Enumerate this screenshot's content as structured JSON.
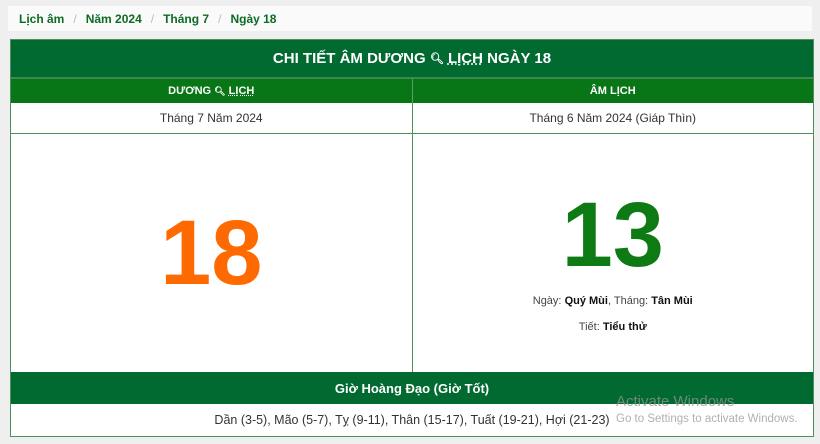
{
  "breadcrumb": [
    "Lịch âm",
    "Năm 2024",
    "Tháng 7",
    "Ngày 18"
  ],
  "title": {
    "pre": "CHI TIẾT ÂM DƯƠNG",
    "icon": "search-icon",
    "link": "LỊCH",
    "post": "NGÀY 18"
  },
  "solar": {
    "header_pre": "DƯƠNG",
    "header_link": "LỊCH",
    "month": "Tháng 7 Năm 2024",
    "day": "18"
  },
  "lunar": {
    "header": "ÂM LỊCH",
    "month": "Tháng 6 Năm 2024 (Giáp Thìn)",
    "day": "13",
    "ngay_label": "Ngày:",
    "ngay_value": "Quý Mùi",
    "thang_label": ", Tháng:",
    "thang_value": "Tân Mùi",
    "tiet_label": "Tiết:",
    "tiet_value": "Tiểu thử"
  },
  "gio": {
    "header": "Giờ Hoàng Đạo (Giờ Tốt)",
    "list": "Dần (3-5), Mão (5-7), Tỵ (9-11), Thân (15-17), Tuất (19-21), Hợi (21-23)"
  },
  "watermark": {
    "line1": "Activate Windows",
    "line2": "Go to Settings to activate Windows."
  },
  "colors": {
    "primary": "#006a31",
    "header": "#087516",
    "solar_day": "#ff6a00",
    "lunar_day": "#0d7a14"
  }
}
